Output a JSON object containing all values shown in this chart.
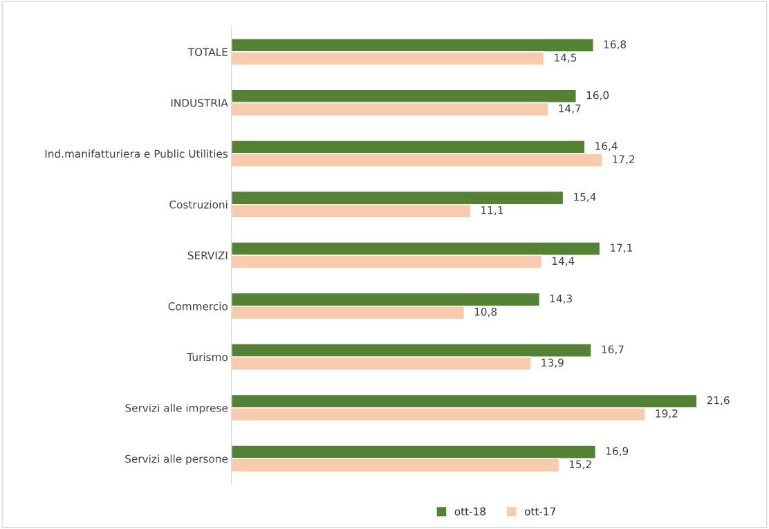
{
  "chart_data": {
    "type": "bar",
    "orientation": "horizontal",
    "categories": [
      "TOTALE",
      "INDUSTRIA",
      "Ind.manifatturiera e Public Utilities",
      "Costruzioni",
      "SERVIZI",
      "Commercio",
      "Turismo",
      "Servizi alle imprese",
      "Servizi alle persone"
    ],
    "series": [
      {
        "name": "ott-18",
        "color": "#548235",
        "values": [
          16.8,
          16.0,
          16.4,
          15.4,
          17.1,
          14.3,
          16.7,
          21.6,
          16.9
        ],
        "value_labels": [
          "16,8",
          "16,0",
          "16,4",
          "15,4",
          "17,1",
          "14,3",
          "16,7",
          "21,6",
          "16,9"
        ]
      },
      {
        "name": "ott-17",
        "color": "#f8cbad",
        "values": [
          14.5,
          14.7,
          17.2,
          11.1,
          14.4,
          10.8,
          13.9,
          19.2,
          15.2
        ],
        "value_labels": [
          "14,5",
          "14,7",
          "17,2",
          "11,1",
          "14,4",
          "10,8",
          "13,9",
          "19,2",
          "15,2"
        ]
      }
    ],
    "tick_labels": "y",
    "grid": false,
    "legend": "bottom"
  }
}
